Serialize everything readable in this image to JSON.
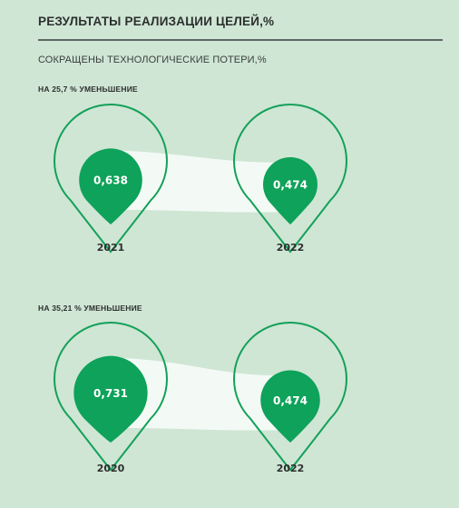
{
  "header": {
    "title": "РЕЗУЛЬТАТЫ РЕАЛИЗАЦИИ ЦЕЛЕЙ,%",
    "subtitle": "СОКРАЩЕНЫ ТЕХНОЛОГИЧЕСКИЕ ПОТЕРИ,%"
  },
  "colors": {
    "background": "#cfe6d4",
    "accent_green": "#0ea25a",
    "outline_green": "#14a05a",
    "band": "#f3faf5"
  },
  "chart_data": [
    {
      "type": "bubble",
      "label": "НА 25,7 % УМЕНЬШЕНИЕ",
      "categories": [
        "2021",
        "2022"
      ],
      "values": [
        0.638,
        0.474
      ],
      "value_labels": [
        "0,638",
        "0,474"
      ]
    },
    {
      "type": "bubble",
      "label": "НА 35,21 % УМЕНЬШЕНИЕ",
      "categories": [
        "2020",
        "2022"
      ],
      "values": [
        0.731,
        0.474
      ],
      "value_labels": [
        "0,731",
        "0,474"
      ]
    }
  ]
}
